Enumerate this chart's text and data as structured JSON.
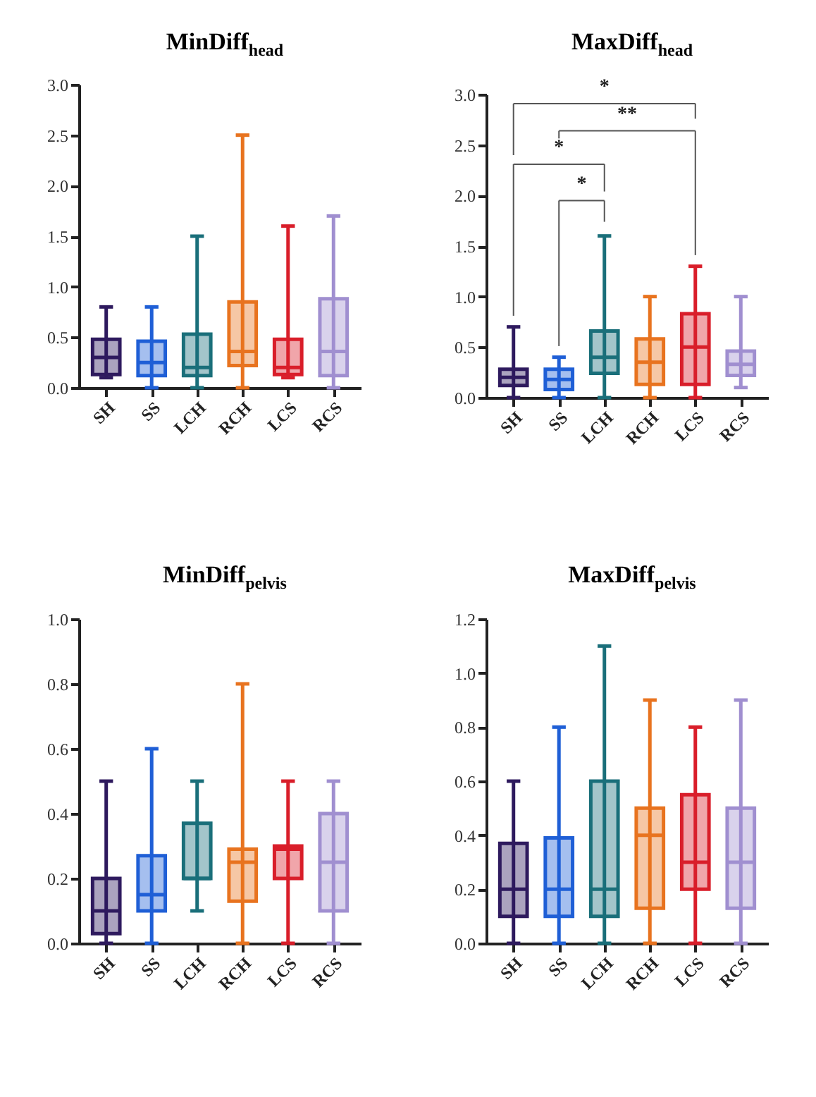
{
  "chart_data": [
    {
      "type": "box",
      "title": "MinDiff$_{head}$",
      "categories": [
        "SH",
        "SS",
        "LCH",
        "RCH",
        "LCS",
        "RCS"
      ],
      "colors": [
        "#2e1a5e",
        "#1f5fd6",
        "#1a6f7a",
        "#e8731f",
        "#d91e2a",
        "#a08fd0"
      ],
      "ylim": [
        0,
        3
      ],
      "yticks": [
        {
          "value": 0,
          "label": "0.0"
        },
        {
          "value": 0.5,
          "label": "0.5"
        },
        {
          "value": 1,
          "label": "1.0"
        },
        {
          "value": 1.5,
          "label": "1.5"
        },
        {
          "value": 2,
          "label": "2.0"
        },
        {
          "value": 2.5,
          "label": "2.5"
        },
        {
          "value": 3,
          "label": "3.0"
        }
      ],
      "boxes": [
        {
          "low": 0.1,
          "q1": 0.13,
          "median": 0.3,
          "q3": 0.48,
          "high": 0.8
        },
        {
          "low": 0,
          "q1": 0.12,
          "median": 0.25,
          "q3": 0.46,
          "high": 0.8
        },
        {
          "low": 0,
          "q1": 0.12,
          "median": 0.2,
          "q3": 0.53,
          "high": 1.5
        },
        {
          "low": 0,
          "q1": 0.22,
          "median": 0.36,
          "q3": 0.85,
          "high": 2.5
        },
        {
          "low": 0.1,
          "q1": 0.13,
          "median": 0.2,
          "q3": 0.48,
          "high": 1.6
        },
        {
          "low": 0,
          "q1": 0.12,
          "median": 0.36,
          "q3": 0.88,
          "high": 1.7
        }
      ]
    },
    {
      "type": "box",
      "title": "MaxDiff$_{head}$",
      "categories": [
        "SH",
        "SS",
        "LCH",
        "RCH",
        "LCS",
        "RCS"
      ],
      "colors": [
        "#2e1a5e",
        "#1f5fd6",
        "#1a6f7a",
        "#e8731f",
        "#d91e2a",
        "#a08fd0"
      ],
      "ylim": [
        0,
        3
      ],
      "yticks": [
        {
          "value": 0,
          "label": "0.0"
        },
        {
          "value": 0.5,
          "label": "0.5"
        },
        {
          "value": 1,
          "label": "1.0"
        },
        {
          "value": 1.5,
          "label": "1.5"
        },
        {
          "value": 2,
          "label": "2.0"
        },
        {
          "value": 2.5,
          "label": "2.5"
        },
        {
          "value": 3,
          "label": "3.0"
        }
      ],
      "boxes": [
        {
          "low": 0,
          "q1": 0.12,
          "median": 0.2,
          "q3": 0.28,
          "high": 0.7
        },
        {
          "low": 0,
          "q1": 0.08,
          "median": 0.18,
          "q3": 0.28,
          "high": 0.4
        },
        {
          "low": 0,
          "q1": 0.24,
          "median": 0.4,
          "q3": 0.66,
          "high": 1.6
        },
        {
          "low": 0,
          "q1": 0.13,
          "median": 0.35,
          "q3": 0.58,
          "high": 1.0
        },
        {
          "low": 0,
          "q1": 0.13,
          "median": 0.5,
          "q3": 0.83,
          "high": 1.3
        },
        {
          "low": 0.1,
          "q1": 0.22,
          "median": 0.33,
          "q3": 0.46,
          "high": 1.0
        }
      ],
      "annotations": [
        "*",
        "**",
        "*",
        "*"
      ]
    },
    {
      "type": "box",
      "title": "MinDiff$_{pelvis}$",
      "categories": [
        "SH",
        "SS",
        "LCH",
        "RCH",
        "LCS",
        "RCS"
      ],
      "colors": [
        "#2e1a5e",
        "#1f5fd6",
        "#1a6f7a",
        "#e8731f",
        "#d91e2a",
        "#a08fd0"
      ],
      "ylim": [
        0,
        1
      ],
      "yticks": [
        {
          "value": 0,
          "label": "0.0"
        },
        0.2,
        0.4,
        0.6,
        0.8,
        {
          "value": 1,
          "label": "1.0"
        }
      ],
      "boxes": [
        {
          "low": 0,
          "q1": 0.03,
          "median": 0.1,
          "q3": 0.2,
          "high": 0.5
        },
        {
          "low": 0,
          "q1": 0.1,
          "median": 0.15,
          "q3": 0.27,
          "high": 0.6
        },
        {
          "low": 0.1,
          "q1": 0.2,
          "median": 0.2,
          "q3": 0.37,
          "high": 0.5
        },
        {
          "low": 0,
          "q1": 0.13,
          "median": 0.25,
          "q3": 0.29,
          "high": 0.8
        },
        {
          "low": 0,
          "q1": 0.2,
          "median": 0.29,
          "q3": 0.3,
          "high": 0.5
        },
        {
          "low": 0,
          "q1": 0.1,
          "median": 0.25,
          "q3": 0.4,
          "high": 0.5
        }
      ]
    },
    {
      "type": "box",
      "title": "MaxDiff$_{pelvis}$",
      "categories": [
        "SH",
        "SS",
        "LCH",
        "RCH",
        "LCS",
        "RCS"
      ],
      "colors": [
        "#2e1a5e",
        "#1f5fd6",
        "#1a6f7a",
        "#e8731f",
        "#d91e2a",
        "#a08fd0"
      ],
      "ylim": [
        0,
        1.2
      ],
      "yticks": [
        {
          "value": 0,
          "label": "0.0"
        },
        0.2,
        0.4,
        0.6,
        0.8,
        {
          "value": 1,
          "label": "1.0"
        },
        1.2
      ],
      "boxes": [
        {
          "low": 0,
          "q1": 0.1,
          "median": 0.2,
          "q3": 0.37,
          "high": 0.6
        },
        {
          "low": 0,
          "q1": 0.1,
          "median": 0.2,
          "q3": 0.39,
          "high": 0.8
        },
        {
          "low": 0,
          "q1": 0.1,
          "median": 0.2,
          "q3": 0.6,
          "high": 1.1
        },
        {
          "low": 0,
          "q1": 0.13,
          "median": 0.4,
          "q3": 0.5,
          "high": 0.9
        },
        {
          "low": 0,
          "q1": 0.2,
          "median": 0.3,
          "q3": 0.55,
          "high": 0.8
        },
        {
          "low": 0,
          "q1": 0.13,
          "median": 0.3,
          "q3": 0.5,
          "high": 0.9
        }
      ]
    }
  ]
}
